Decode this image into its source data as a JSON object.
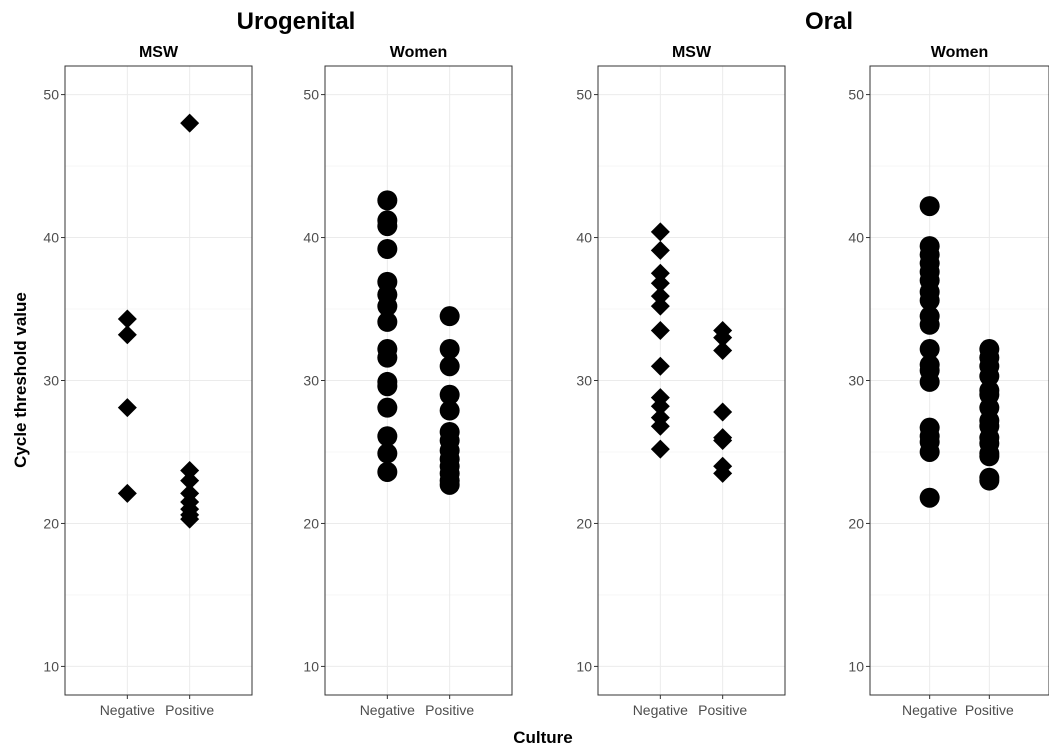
{
  "chart_data": {
    "type": "scatter",
    "xlabel": "Culture",
    "ylabel": "Cycle threshold value",
    "ylim": [
      8,
      52
    ],
    "y_ticks": [
      "10",
      "20",
      "30",
      "40",
      "50"
    ],
    "categories": [
      "Negative",
      "Positive"
    ],
    "groups": [
      {
        "title": "Urogenital",
        "panels": [
          0,
          1
        ]
      },
      {
        "title": "Oral",
        "panels": [
          2,
          3
        ]
      }
    ],
    "panels": [
      {
        "title": "MSW",
        "marker": "diamond",
        "points": [
          {
            "x": "Negative",
            "y": 34.3
          },
          {
            "x": "Negative",
            "y": 33.2
          },
          {
            "x": "Negative",
            "y": 28.1
          },
          {
            "x": "Negative",
            "y": 22.1
          },
          {
            "x": "Positive",
            "y": 48.0
          },
          {
            "x": "Positive",
            "y": 23.7
          },
          {
            "x": "Positive",
            "y": 23.0
          },
          {
            "x": "Positive",
            "y": 22.1
          },
          {
            "x": "Positive",
            "y": 21.5
          },
          {
            "x": "Positive",
            "y": 21.0
          },
          {
            "x": "Positive",
            "y": 20.6
          },
          {
            "x": "Positive",
            "y": 20.3
          }
        ]
      },
      {
        "title": "Women",
        "marker": "circle",
        "points": [
          {
            "x": "Negative",
            "y": 42.6
          },
          {
            "x": "Negative",
            "y": 41.2
          },
          {
            "x": "Negative",
            "y": 40.8
          },
          {
            "x": "Negative",
            "y": 39.2
          },
          {
            "x": "Negative",
            "y": 36.9
          },
          {
            "x": "Negative",
            "y": 36.0
          },
          {
            "x": "Negative",
            "y": 35.2
          },
          {
            "x": "Negative",
            "y": 34.1
          },
          {
            "x": "Negative",
            "y": 32.2
          },
          {
            "x": "Negative",
            "y": 31.6
          },
          {
            "x": "Negative",
            "y": 29.9
          },
          {
            "x": "Negative",
            "y": 29.6
          },
          {
            "x": "Negative",
            "y": 28.1
          },
          {
            "x": "Negative",
            "y": 26.1
          },
          {
            "x": "Negative",
            "y": 24.9
          },
          {
            "x": "Negative",
            "y": 23.6
          },
          {
            "x": "Positive",
            "y": 34.5
          },
          {
            "x": "Positive",
            "y": 32.2
          },
          {
            "x": "Positive",
            "y": 31.0
          },
          {
            "x": "Positive",
            "y": 29.0
          },
          {
            "x": "Positive",
            "y": 27.9
          },
          {
            "x": "Positive",
            "y": 26.4
          },
          {
            "x": "Positive",
            "y": 25.8
          },
          {
            "x": "Positive",
            "y": 25.1
          },
          {
            "x": "Positive",
            "y": 24.5
          },
          {
            "x": "Positive",
            "y": 24.0
          },
          {
            "x": "Positive",
            "y": 23.5
          },
          {
            "x": "Positive",
            "y": 23.0
          },
          {
            "x": "Positive",
            "y": 22.7
          }
        ]
      },
      {
        "title": "MSW",
        "marker": "diamond",
        "points": [
          {
            "x": "Negative",
            "y": 40.4
          },
          {
            "x": "Negative",
            "y": 39.1
          },
          {
            "x": "Negative",
            "y": 37.5
          },
          {
            "x": "Negative",
            "y": 36.8
          },
          {
            "x": "Negative",
            "y": 35.9
          },
          {
            "x": "Negative",
            "y": 35.2
          },
          {
            "x": "Negative",
            "y": 33.5
          },
          {
            "x": "Negative",
            "y": 31.0
          },
          {
            "x": "Negative",
            "y": 28.8
          },
          {
            "x": "Negative",
            "y": 28.2
          },
          {
            "x": "Negative",
            "y": 27.4
          },
          {
            "x": "Negative",
            "y": 26.8
          },
          {
            "x": "Negative",
            "y": 25.2
          },
          {
            "x": "Positive",
            "y": 33.5
          },
          {
            "x": "Positive",
            "y": 33.0
          },
          {
            "x": "Positive",
            "y": 32.1
          },
          {
            "x": "Positive",
            "y": 27.8
          },
          {
            "x": "Positive",
            "y": 26.0
          },
          {
            "x": "Positive",
            "y": 25.8
          },
          {
            "x": "Positive",
            "y": 24.0
          },
          {
            "x": "Positive",
            "y": 23.5
          }
        ]
      },
      {
        "title": "Women",
        "marker": "circle",
        "points": [
          {
            "x": "Negative",
            "y": 42.2
          },
          {
            "x": "Negative",
            "y": 39.4
          },
          {
            "x": "Negative",
            "y": 38.8
          },
          {
            "x": "Negative",
            "y": 38.2
          },
          {
            "x": "Negative",
            "y": 37.6
          },
          {
            "x": "Negative",
            "y": 37.0
          },
          {
            "x": "Negative",
            "y": 36.2
          },
          {
            "x": "Negative",
            "y": 35.6
          },
          {
            "x": "Negative",
            "y": 34.5
          },
          {
            "x": "Negative",
            "y": 33.9
          },
          {
            "x": "Negative",
            "y": 32.2
          },
          {
            "x": "Negative",
            "y": 31.1
          },
          {
            "x": "Negative",
            "y": 30.7
          },
          {
            "x": "Negative",
            "y": 29.9
          },
          {
            "x": "Negative",
            "y": 26.7
          },
          {
            "x": "Negative",
            "y": 26.1
          },
          {
            "x": "Negative",
            "y": 25.7
          },
          {
            "x": "Negative",
            "y": 25.0
          },
          {
            "x": "Negative",
            "y": 21.8
          },
          {
            "x": "Positive",
            "y": 32.2
          },
          {
            "x": "Positive",
            "y": 31.6
          },
          {
            "x": "Positive",
            "y": 31.0
          },
          {
            "x": "Positive",
            "y": 30.3
          },
          {
            "x": "Positive",
            "y": 29.3
          },
          {
            "x": "Positive",
            "y": 29.0
          },
          {
            "x": "Positive",
            "y": 28.1
          },
          {
            "x": "Positive",
            "y": 27.2
          },
          {
            "x": "Positive",
            "y": 26.8
          },
          {
            "x": "Positive",
            "y": 26.0
          },
          {
            "x": "Positive",
            "y": 25.6
          },
          {
            "x": "Positive",
            "y": 24.9
          },
          {
            "x": "Positive",
            "y": 24.7
          },
          {
            "x": "Positive",
            "y": 23.2
          },
          {
            "x": "Positive",
            "y": 23.0
          }
        ]
      }
    ]
  }
}
